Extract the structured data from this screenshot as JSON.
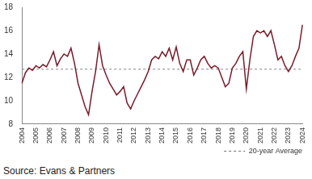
{
  "chart_data": {
    "type": "line",
    "source": "Source: Evans & Partners",
    "categories": [
      "2004",
      null,
      null,
      null,
      "2005",
      null,
      null,
      null,
      "2006",
      null,
      null,
      null,
      "2007",
      null,
      null,
      null,
      "2008",
      null,
      null,
      null,
      "2009",
      null,
      null,
      null,
      "2010",
      null,
      null,
      null,
      "2011",
      null,
      null,
      null,
      "2012",
      null,
      null,
      null,
      "2013",
      null,
      null,
      null,
      "2014",
      null,
      null,
      null,
      "2015",
      null,
      null,
      null,
      "2016",
      null,
      null,
      null,
      "2017",
      null,
      null,
      null,
      "2018",
      null,
      null,
      null,
      "2019",
      null,
      null,
      null,
      "2020",
      null,
      null,
      null,
      "2021",
      null,
      null,
      null,
      "2022",
      null,
      null,
      null,
      "2023",
      null,
      null,
      null,
      "2024"
    ],
    "series": [
      {
        "color": "#7a1b2a",
        "line_style": "solid",
        "values": [
          11.5,
          12.4,
          12.8,
          12.6,
          13.0,
          12.8,
          13.1,
          12.9,
          13.5,
          14.2,
          13.0,
          13.6,
          14.0,
          13.8,
          14.5,
          13.2,
          11.5,
          10.5,
          9.5,
          8.8,
          10.8,
          12.5,
          14.8,
          13.0,
          12.2,
          11.5,
          11.0,
          10.5,
          10.8,
          11.2,
          9.8,
          9.3,
          10.0,
          10.6,
          11.2,
          11.8,
          12.5,
          13.5,
          13.8,
          13.6,
          14.2,
          13.8,
          14.5,
          13.5,
          14.6,
          13.2,
          12.5,
          13.5,
          13.5,
          12.2,
          12.8,
          13.5,
          13.8,
          13.2,
          12.8,
          13.0,
          12.8,
          12.0,
          11.2,
          11.5,
          12.8,
          13.2,
          13.8,
          14.2,
          11.0,
          13.5,
          15.5,
          16.0,
          15.8,
          16.0,
          15.5,
          16.0,
          14.8,
          13.5,
          13.8,
          13.0,
          12.5,
          13.0,
          13.8,
          14.5,
          16.5
        ]
      },
      {
        "name": "20-year Average",
        "color": "#808080",
        "line_style": "dashed",
        "values": [
          12.7,
          12.7,
          12.7,
          12.7,
          12.7,
          12.7,
          12.7,
          12.7,
          12.7,
          12.7,
          12.7,
          12.7,
          12.7,
          12.7,
          12.7,
          12.7,
          12.7,
          12.7,
          12.7,
          12.7,
          12.7,
          12.7,
          12.7,
          12.7,
          12.7,
          12.7,
          12.7,
          12.7,
          12.7,
          12.7,
          12.7,
          12.7,
          12.7,
          12.7,
          12.7,
          12.7,
          12.7,
          12.7,
          12.7,
          12.7,
          12.7,
          12.7,
          12.7,
          12.7,
          12.7,
          12.7,
          12.7,
          12.7,
          12.7,
          12.7,
          12.7,
          12.7,
          12.7,
          12.7,
          12.7,
          12.7,
          12.7,
          12.7,
          12.7,
          12.7,
          12.7,
          12.7,
          12.7,
          12.7,
          12.7,
          12.7,
          12.7,
          12.7,
          12.7,
          12.7,
          12.7,
          12.7,
          12.7,
          12.7,
          12.7,
          12.7,
          12.7,
          12.7,
          12.7,
          12.7,
          12.7
        ]
      }
    ],
    "ylim": [
      8,
      18
    ],
    "yticks": [
      8,
      10,
      12,
      14,
      16,
      18
    ],
    "grid": false,
    "legend": "lower right"
  }
}
